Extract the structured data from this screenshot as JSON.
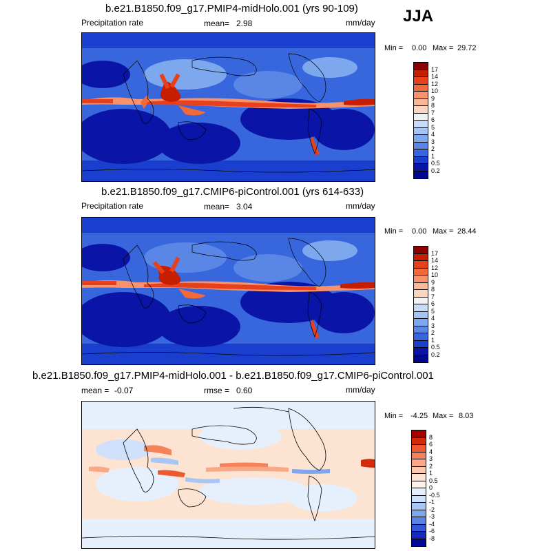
{
  "season": "JJA",
  "panels": [
    {
      "title": "b.e21.B1850.f09_g17.PMIP4-midHolo.001 (yrs 90-109)",
      "left_label": "Precipitation rate",
      "stat_label": "mean=",
      "stat_value": "2.98",
      "units": "mm/day",
      "min_label": "Min =",
      "min_value": "0.00",
      "max_label": "Max =",
      "max_value": "29.72",
      "ticks": [
        "17",
        "14",
        "12",
        "10",
        "9",
        "8",
        "7",
        "6",
        "5",
        "4",
        "3",
        "2",
        "1",
        "0.5",
        "0.2"
      ],
      "colors": [
        "#8b0000",
        "#c81e00",
        "#e8401c",
        "#f26a3a",
        "#f7926a",
        "#fab795",
        "#fcd6c0",
        "#f2f2f2",
        "#c8dcf8",
        "#a5c5f5",
        "#7ea8ee",
        "#5a86e6",
        "#3766dd",
        "#1a3fcf",
        "#0a15a8",
        "#000890"
      ]
    },
    {
      "title": "b.e21.B1850.f09_g17.CMIP6-piControl.001 (yrs 614-633)",
      "left_label": "Precipitation rate",
      "stat_label": "mean=",
      "stat_value": "3.04",
      "units": "mm/day",
      "min_label": "Min =",
      "min_value": "0.00",
      "max_label": "Max =",
      "max_value": "28.44",
      "ticks": [
        "17",
        "14",
        "12",
        "10",
        "9",
        "8",
        "7",
        "6",
        "5",
        "4",
        "3",
        "2",
        "1",
        "0.5",
        "0.2"
      ],
      "colors": [
        "#8b0000",
        "#c81e00",
        "#e8401c",
        "#f26a3a",
        "#f7926a",
        "#fab795",
        "#fcd6c0",
        "#f2f2f2",
        "#c8dcf8",
        "#a5c5f5",
        "#7ea8ee",
        "#5a86e6",
        "#3766dd",
        "#1a3fcf",
        "#0a15a8",
        "#000890"
      ]
    },
    {
      "title": "b.e21.B1850.f09_g17.PMIP4-midHolo.001 - b.e21.B1850.f09_g17.CMIP6-piControl.001",
      "left_label": "mean =",
      "left_value": "-0.07",
      "stat_label": "rmse =",
      "stat_value": "0.60",
      "units": "mm/day",
      "min_label": "Min =",
      "min_value": "-4.25",
      "max_label": "Max =",
      "max_value": "8.03",
      "ticks": [
        "8",
        "6",
        "4",
        "3",
        "2",
        "1",
        "0.5",
        "0",
        "-0.5",
        "-1",
        "-2",
        "-3",
        "-4",
        "-6",
        "-8"
      ],
      "colors": [
        "#a30000",
        "#d42a0c",
        "#ee5a30",
        "#f5835a",
        "#f8a886",
        "#fbc9af",
        "#fde3d2",
        "#fdf0e6",
        "#e6f0fc",
        "#cfe0fa",
        "#a8c6f3",
        "#7fa6ec",
        "#5982e3",
        "#3458d8",
        "#1629be",
        "#000a96"
      ]
    }
  ]
}
